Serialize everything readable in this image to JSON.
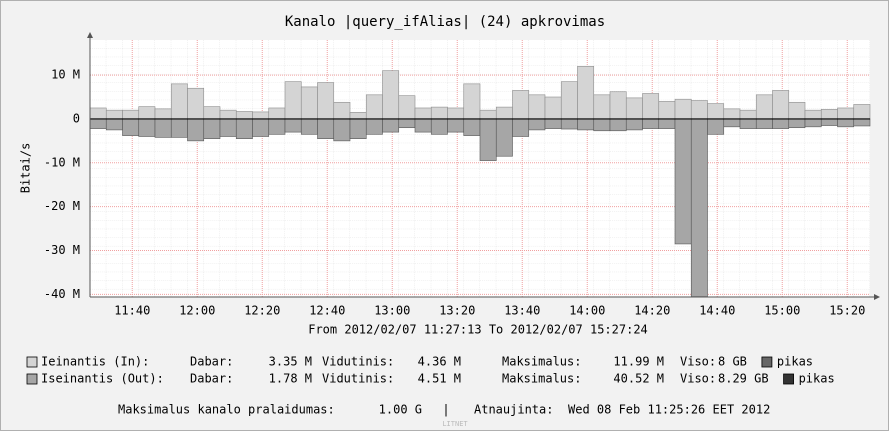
{
  "chart_data": {
    "type": "step-area",
    "title": "Kanalo |query_ifAlias| (24) apkrovimas",
    "ylabel": "Bitai/s",
    "xlabel": "From 2012/02/07 11:27:13 To 2012/02/07 15:27:24",
    "x": [
      687,
      692,
      697,
      702,
      707,
      712,
      717,
      722,
      727,
      732,
      737,
      742,
      747,
      752,
      757,
      762,
      767,
      772,
      777,
      782,
      787,
      792,
      797,
      802,
      807,
      812,
      817,
      822,
      827,
      832,
      837,
      842,
      847,
      852,
      857,
      862,
      867,
      872,
      877,
      882,
      887,
      892,
      897,
      902,
      907,
      912,
      917,
      922
    ],
    "xlim": [
      687,
      927
    ],
    "xticks": [
      {
        "value": 700,
        "label": "11:40"
      },
      {
        "value": 720,
        "label": "12:00"
      },
      {
        "value": 740,
        "label": "12:20"
      },
      {
        "value": 760,
        "label": "12:40"
      },
      {
        "value": 780,
        "label": "13:00"
      },
      {
        "value": 800,
        "label": "13:20"
      },
      {
        "value": 820,
        "label": "13:40"
      },
      {
        "value": 840,
        "label": "14:00"
      },
      {
        "value": 860,
        "label": "14:20"
      },
      {
        "value": 880,
        "label": "14:40"
      },
      {
        "value": 900,
        "label": "15:00"
      },
      {
        "value": 920,
        "label": "15:20"
      }
    ],
    "ylim": [
      -40.6,
      18
    ],
    "yticks": [
      {
        "value": 10,
        "label": "10 M"
      },
      0,
      {
        "value": -10,
        "label": "-10 M"
      },
      {
        "value": -20,
        "label": "-20 M"
      },
      {
        "value": -30,
        "label": "-30 M"
      },
      {
        "value": -40,
        "label": "-40 M"
      }
    ],
    "grid": true,
    "series": [
      {
        "name": "Ieinantis (In):",
        "color": "#d4d4d4",
        "stroke": "#8c8c8c",
        "values": [
          2.5,
          2,
          2,
          2.8,
          2.3,
          8,
          7,
          2.8,
          2,
          1.7,
          1.6,
          2.5,
          8.5,
          7.3,
          8.3,
          3.8,
          1.5,
          5.5,
          11,
          5.3,
          2.5,
          2.7,
          2.5,
          8,
          2,
          2.7,
          6.5,
          5.5,
          5,
          8.5,
          11.99,
          5.5,
          6.2,
          4.8,
          5.8,
          4,
          4.5,
          4.2,
          3.5,
          2.3,
          2,
          5.5,
          6.5,
          3.8,
          2,
          2.2,
          2.5,
          3.3
        ],
        "stats": [
          {
            "label": "Dabar:",
            "value": "3.35 M"
          },
          {
            "label": "Vidutinis:",
            "value": "4.36 M"
          },
          {
            "label": "Maksimalus:",
            "value": "11.99 M"
          },
          {
            "label": "Viso:",
            "value": "8 GB"
          }
        ],
        "peak_label": "pikas",
        "peak_color": "#666666"
      },
      {
        "name": "Iseinantis (Out):",
        "color": "#a6a6a6",
        "stroke": "#555555",
        "values": [
          -2.2,
          -2.5,
          -3.8,
          -4,
          -4.2,
          -4.2,
          -5,
          -4.5,
          -4,
          -4.5,
          -4,
          -3.5,
          -3,
          -3.5,
          -4.5,
          -5,
          -4.5,
          -3.5,
          -3,
          -2,
          -3,
          -3.5,
          -3,
          -3.8,
          -9.5,
          -8.5,
          -4,
          -2.5,
          -2.2,
          -2.3,
          -2.5,
          -2.7,
          -2.7,
          -2.5,
          -2.2,
          -2.2,
          -28.5,
          -40.52,
          -3.5,
          -1.8,
          -2.2,
          -2.2,
          -2.2,
          -2,
          -1.8,
          -1.5,
          -1.8,
          -1.6
        ],
        "stats": [
          {
            "label": "Dabar:",
            "value": "1.78 M"
          },
          {
            "label": "Vidutinis:",
            "value": "4.51 M"
          },
          {
            "label": "Maksimalus:",
            "value": "40.52 M"
          },
          {
            "label": "Viso:",
            "value": "8.29 GB"
          }
        ],
        "peak_label": "pikas",
        "peak_color": "#333333"
      }
    ]
  },
  "footer": {
    "max_bandwidth_label": "Maksimalus kanalo pralaidumas:",
    "max_bandwidth": "1.00 G",
    "separator": "|",
    "updated_label": "Atnaujinta:",
    "updated": "Wed 08 Feb 11:25:26 EET 2012",
    "watermark": "LITNET"
  }
}
